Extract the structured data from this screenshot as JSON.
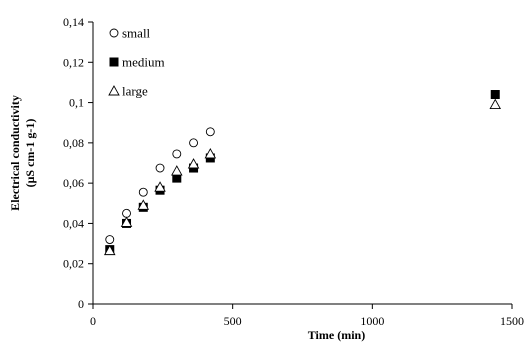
{
  "chart_data": {
    "type": "scatter",
    "xlabel": "Time (min)",
    "ylabel_lines": [
      "Electrical  conductivity",
      "(μS cm-1 g-1)"
    ],
    "xlim": [
      0,
      1500
    ],
    "ylim": [
      0,
      0.14
    ],
    "x_ticks": [
      0,
      500,
      1000,
      1500
    ],
    "x_tick_labels": [
      "0",
      "500",
      "1000",
      "1500"
    ],
    "y_ticks": [
      0,
      0.02,
      0.04,
      0.06,
      0.08,
      0.1,
      0.12,
      0.14
    ],
    "y_tick_labels": [
      "0",
      "0,02",
      "0,04",
      "0,06",
      "0,08",
      "0,1",
      "0,12",
      "0,14"
    ],
    "grid": false,
    "legend_position": "top-left",
    "series": [
      {
        "name": "small",
        "marker": "open-circle",
        "x": [
          60,
          120,
          180,
          240,
          300,
          360,
          420
        ],
        "y": [
          0.032,
          0.045,
          0.0555,
          0.0675,
          0.0745,
          0.08,
          0.0855
        ]
      },
      {
        "name": "medium",
        "marker": "filled-square",
        "x": [
          60,
          120,
          180,
          240,
          300,
          360,
          420,
          1440
        ],
        "y": [
          0.027,
          0.04,
          0.048,
          0.0565,
          0.0625,
          0.0675,
          0.0725,
          0.104
        ]
      },
      {
        "name": "large",
        "marker": "open-triangle",
        "x": [
          60,
          120,
          180,
          240,
          300,
          360,
          420,
          1440
        ],
        "y": [
          0.0265,
          0.0405,
          0.049,
          0.058,
          0.066,
          0.0695,
          0.0745,
          0.099
        ]
      }
    ]
  }
}
